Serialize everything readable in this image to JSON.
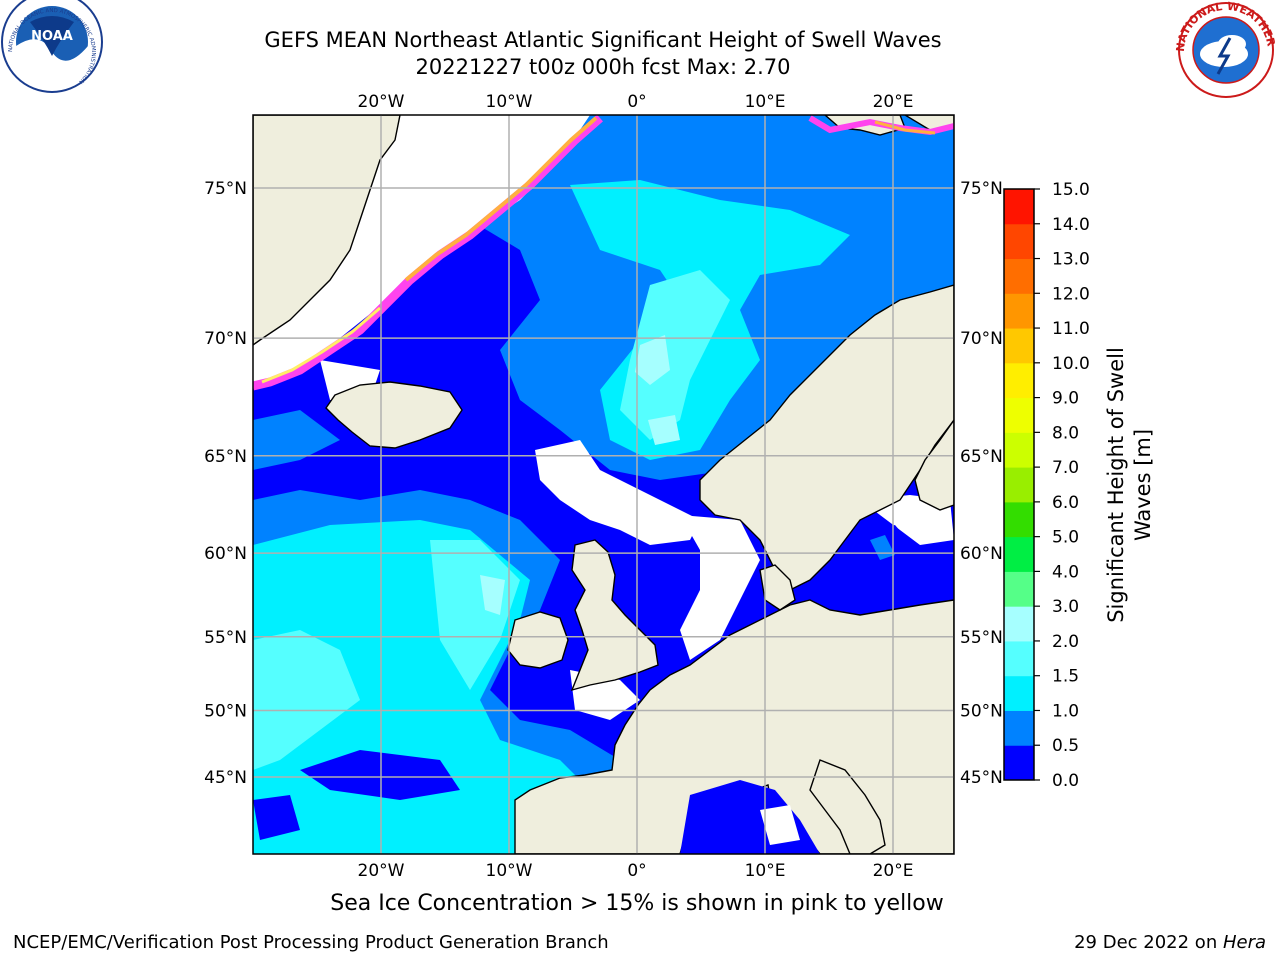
{
  "title": {
    "line1": "GEFS MEAN Northeast Atlantic Significant Height of Swell Waves",
    "line2": "20221227 t00z 000h fcst   Max: 2.70"
  },
  "map": {
    "lon_ticks": [
      {
        "lon": -20,
        "label": "20°W"
      },
      {
        "lon": -10,
        "label": "10°W"
      },
      {
        "lon": 0,
        "label": "0°"
      },
      {
        "lon": 10,
        "label": "10°E"
      },
      {
        "lon": 20,
        "label": "20°E"
      }
    ],
    "lat_ticks": [
      {
        "lat": 75,
        "label": "75°N"
      },
      {
        "lat": 70,
        "label": "70°N"
      },
      {
        "lat": 65,
        "label": "65°N"
      },
      {
        "lat": 60,
        "label": "60°N"
      },
      {
        "lat": 55,
        "label": "55°N"
      },
      {
        "lat": 50,
        "label": "50°N"
      },
      {
        "lat": 45,
        "label": "45°N"
      }
    ],
    "colors": {
      "land": "#efeedd",
      "ocean_low": "#0000ff",
      "ocean_mid": "#0082ff",
      "swell_15": "#00f0ff",
      "swell_20": "#55ffff",
      "swell_25": "#a6ffff",
      "no_data": "#ffffff",
      "ice_pink": "#ff44ee",
      "ice_orange": "#ffb040",
      "ice_yellow": "#ffee66",
      "grid": "#b0b0b0"
    }
  },
  "colorbar": {
    "label_line1": "Significant Height of Swell",
    "label_line2": "Waves [m]",
    "ticks": [
      "0.0",
      "0.5",
      "1.0",
      "1.5",
      "2.0",
      "3.0",
      "4.0",
      "5.0",
      "6.0",
      "7.0",
      "8.0",
      "9.0",
      "10.0",
      "11.0",
      "12.0",
      "13.0",
      "14.0",
      "15.0"
    ],
    "colors": [
      "#0000ff",
      "#0082ff",
      "#00f0ff",
      "#55ffff",
      "#a6ffff",
      "#55ff88",
      "#00ee44",
      "#33dd00",
      "#99ee00",
      "#ccff00",
      "#eeff00",
      "#ffee00",
      "#ffc800",
      "#ff9600",
      "#ff6e00",
      "#ff4600",
      "#ff1400"
    ]
  },
  "bottom_note": "Sea Ice Concentration > 15% is shown in pink to yellow",
  "footer": {
    "left": "NCEP/EMC/Verification Post Processing Product Generation Branch",
    "date": "29 Dec 2022 on ",
    "machine": "Hera"
  },
  "logos": {
    "noaa_text": "NOAA",
    "nws_ring": "NATIONAL WEATHER SERVICE",
    "noaa_ring": "NATIONAL OCEANIC AND ATMOSPHERIC ADMINISTRATION"
  }
}
